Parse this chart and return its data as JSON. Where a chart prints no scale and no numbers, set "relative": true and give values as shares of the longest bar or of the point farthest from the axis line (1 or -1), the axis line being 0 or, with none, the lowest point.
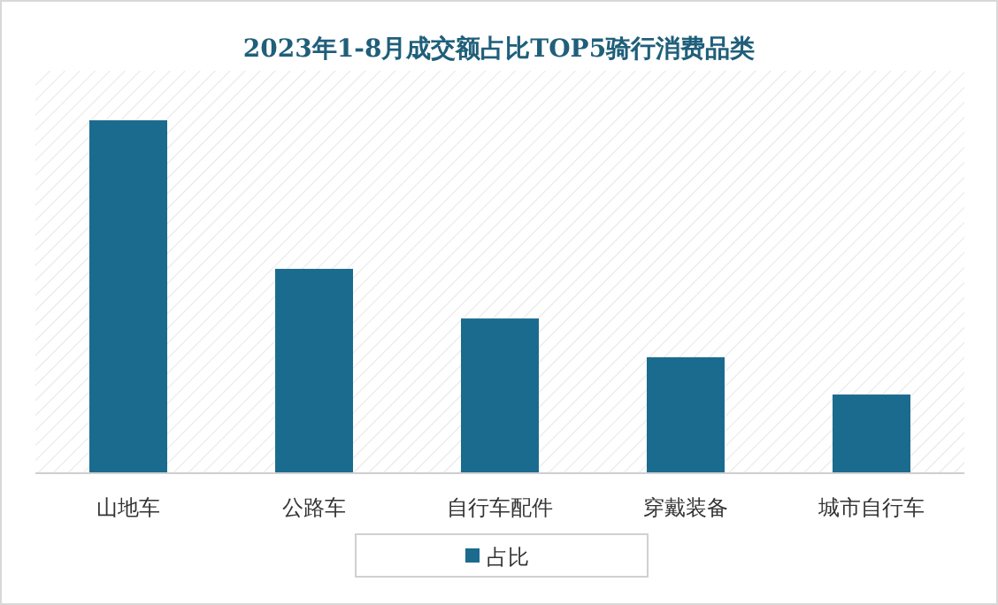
{
  "chart_data": {
    "type": "bar",
    "title": "2023年1-8月成交额占比TOP5骑行消费品类",
    "categories": [
      "山地车",
      "公路车",
      "自行车配件",
      "穿戴装备",
      "城市自行车"
    ],
    "series": [
      {
        "name": "占比",
        "color": "#1b6b8f",
        "values": [
          1,
          0.578,
          0.437,
          0.327,
          0.221
        ]
      }
    ],
    "relative": true,
    "legend": "bottom"
  }
}
